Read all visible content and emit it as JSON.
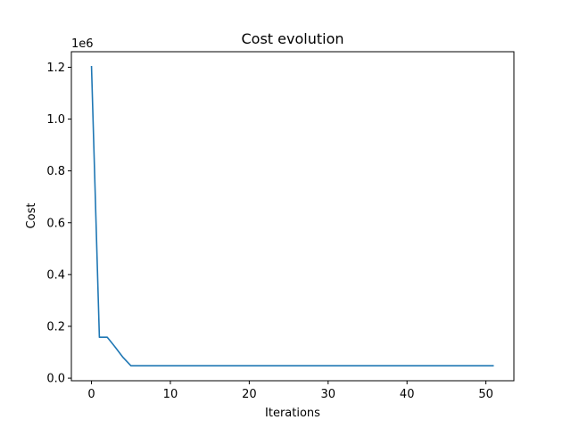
{
  "chart_data": {
    "type": "line",
    "title": "Cost evolution",
    "xlabel": "Iterations",
    "ylabel": "Cost",
    "y_offset_label": "1e6",
    "xlim": [
      -2.55,
      53.55
    ],
    "ylim": [
      -0.01,
      1.26
    ],
    "xticks": [
      0,
      10,
      20,
      30,
      40,
      50
    ],
    "xtick_labels": [
      "0",
      "10",
      "20",
      "30",
      "40",
      "50"
    ],
    "yticks": [
      0.0,
      0.2,
      0.4,
      0.6,
      0.8,
      1.0,
      1.2
    ],
    "ytick_labels": [
      "0.0",
      "0.2",
      "0.4",
      "0.6",
      "0.8",
      "1.0",
      "1.2"
    ],
    "grid": false,
    "line_color": "#1f77b4",
    "series": [
      {
        "x": [
          0,
          1,
          2,
          3,
          4,
          5,
          6,
          7,
          8,
          9,
          10,
          11,
          12,
          13,
          14,
          15,
          16,
          17,
          18,
          19,
          20,
          21,
          22,
          23,
          24,
          25,
          26,
          27,
          28,
          29,
          30,
          31,
          32,
          33,
          34,
          35,
          36,
          37,
          38,
          39,
          40,
          41,
          42,
          43,
          44,
          45,
          46,
          47,
          48,
          49,
          50,
          51
        ],
        "values": [
          1.205,
          0.158,
          0.158,
          0.12,
          0.08,
          0.048,
          0.048,
          0.048,
          0.048,
          0.048,
          0.048,
          0.048,
          0.048,
          0.048,
          0.048,
          0.048,
          0.048,
          0.048,
          0.048,
          0.048,
          0.048,
          0.048,
          0.048,
          0.048,
          0.048,
          0.048,
          0.048,
          0.048,
          0.048,
          0.048,
          0.048,
          0.048,
          0.048,
          0.048,
          0.048,
          0.048,
          0.048,
          0.048,
          0.048,
          0.048,
          0.048,
          0.048,
          0.048,
          0.048,
          0.048,
          0.048,
          0.048,
          0.048,
          0.048,
          0.048,
          0.048,
          0.048
        ]
      }
    ]
  }
}
